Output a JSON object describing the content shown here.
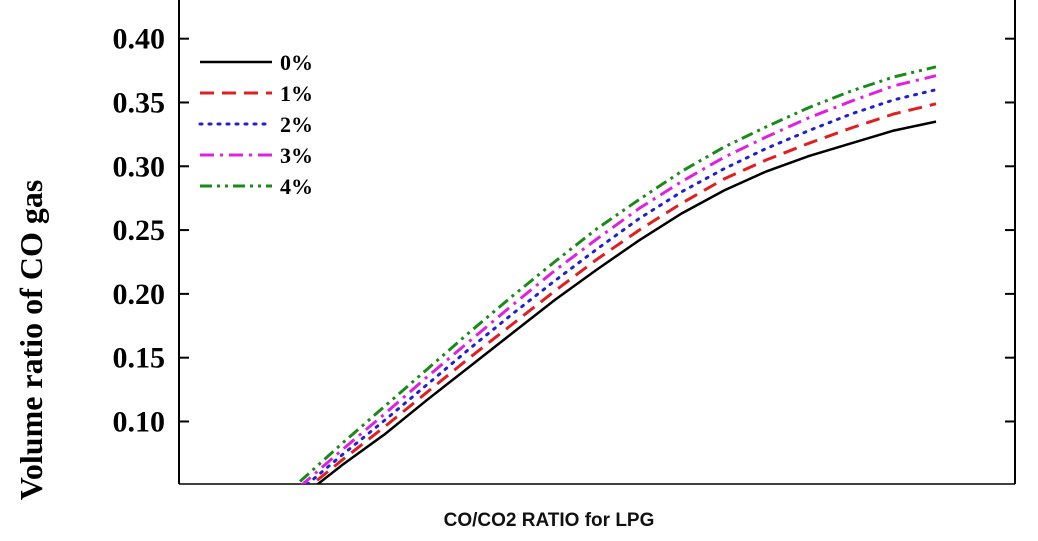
{
  "chart_data": {
    "type": "line",
    "xlabel": "CO/CO2 RATIO for LPG",
    "ylabel": "Volume ratio of CO gas",
    "ylim": [
      0.06,
      0.42
    ],
    "yticks": [
      "0.10",
      "0.15",
      "0.20",
      "0.25",
      "0.30",
      "0.35",
      "0.40"
    ],
    "x": [
      0,
      1,
      2,
      3,
      4,
      5,
      6,
      7,
      8,
      9,
      10,
      11,
      12,
      13,
      14,
      15
    ],
    "grid": false,
    "legend_position": "top-left",
    "series": [
      {
        "name": "0%",
        "color": "#000000",
        "dash": "solid",
        "values": [
          0.04,
          0.066,
          0.09,
          0.117,
          0.143,
          0.169,
          0.195,
          0.219,
          0.242,
          0.263,
          0.281,
          0.296,
          0.308,
          0.318,
          0.328,
          0.335
        ]
      },
      {
        "name": "1%",
        "color": "#e02020",
        "dash": "dash",
        "values": [
          0.043,
          0.07,
          0.096,
          0.123,
          0.15,
          0.176,
          0.202,
          0.227,
          0.25,
          0.271,
          0.29,
          0.305,
          0.318,
          0.33,
          0.341,
          0.349
        ]
      },
      {
        "name": "2%",
        "color": "#2020d0",
        "dash": "dot",
        "values": [
          0.046,
          0.074,
          0.101,
          0.129,
          0.157,
          0.184,
          0.21,
          0.235,
          0.259,
          0.28,
          0.298,
          0.314,
          0.328,
          0.341,
          0.352,
          0.36
        ]
      },
      {
        "name": "3%",
        "color": "#e020e0",
        "dash": "dashdot",
        "values": [
          0.049,
          0.078,
          0.106,
          0.135,
          0.163,
          0.191,
          0.218,
          0.243,
          0.267,
          0.288,
          0.307,
          0.323,
          0.338,
          0.351,
          0.363,
          0.371
        ]
      },
      {
        "name": "4%",
        "color": "#1a8a1a",
        "dash": "dashdotdot",
        "values": [
          0.053,
          0.083,
          0.112,
          0.141,
          0.17,
          0.198,
          0.225,
          0.251,
          0.274,
          0.296,
          0.315,
          0.331,
          0.346,
          0.359,
          0.37,
          0.378
        ]
      }
    ]
  }
}
